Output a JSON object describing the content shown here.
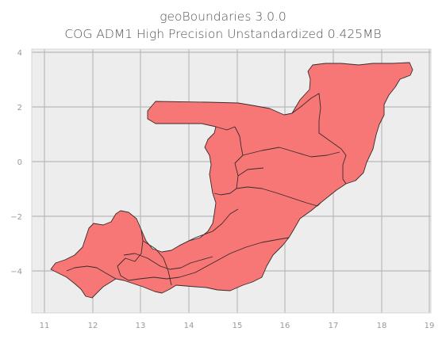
{
  "title_line1": "geoBoundaries 3.0.0",
  "title_line2": "COG ADM1 High Precision Unstandardized 0.425MB",
  "axes": {
    "x_ticks": [
      "11",
      "12",
      "13",
      "14",
      "15",
      "16",
      "17",
      "18",
      "19"
    ],
    "y_ticks": [
      "4",
      "2",
      "0",
      "−2",
      "−4"
    ],
    "xlim": [
      10.7,
      19.05
    ],
    "ylim": [
      -5.5,
      4.2
    ],
    "grid": true
  },
  "colors": {
    "plot_background": "#ededed",
    "fill": "#f77777",
    "edge": "#3a2a2a",
    "grid": "#b9b9b9"
  },
  "map": {
    "country": "Republic of the Congo",
    "admin_level": "ADM1"
  }
}
